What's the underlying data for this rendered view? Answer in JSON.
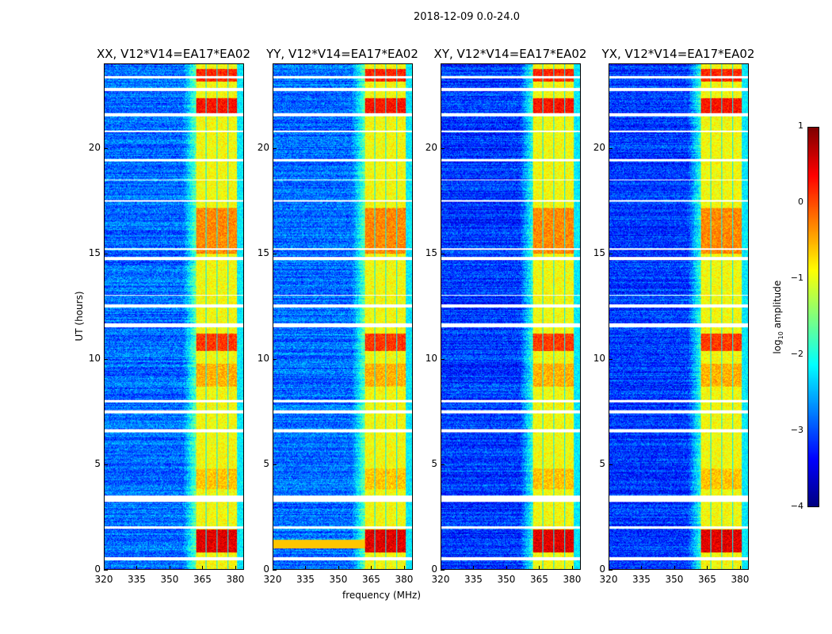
{
  "chart_data": {
    "type": "heatmap",
    "title": "2018-12-09 0.0-24.0",
    "xlabel": "frequency (MHz)",
    "ylabel": "UT (hours)",
    "xlim": [
      320,
      384
    ],
    "ylim": [
      0,
      24
    ],
    "xticks": [
      "320",
      "335",
      "350",
      "365",
      "380"
    ],
    "xtick_values": [
      320,
      335,
      350,
      365,
      380
    ],
    "yticks": [
      "0",
      "5",
      "10",
      "15",
      "20"
    ],
    "ytick_values": [
      0,
      5,
      10,
      15,
      20
    ],
    "panels": [
      {
        "title": "XX, V12*V14=EA17*EA02"
      },
      {
        "title": "YY, V12*V14=EA17*EA02"
      },
      {
        "title": "XY, V12*V14=EA17*EA02"
      },
      {
        "title": "YX, V12*V14=EA17*EA02"
      }
    ],
    "colorbar": {
      "label_prefix": "log",
      "label_sub": "10",
      "label_suffix": " amplitude",
      "range": [
        -4,
        1
      ],
      "ticks": [
        "1",
        "0",
        "−1",
        "−2",
        "−3",
        "−4"
      ],
      "tick_values": [
        1,
        0,
        -1,
        -2,
        -3,
        -4
      ],
      "colormap": "jet"
    },
    "background_level": -3.0,
    "band_mhz": [
      362,
      381
    ],
    "subbands_mhz": [
      [
        362,
        366.5
      ],
      [
        367,
        371.5
      ],
      [
        372,
        376.5
      ],
      [
        377,
        381
      ]
    ],
    "band_level": -0.9,
    "bright_hours": [
      [
        0.8,
        1.9,
        0.5
      ],
      [
        10.4,
        11.2,
        0.1
      ],
      [
        15.0,
        17.2,
        -0.3
      ],
      [
        21.7,
        22.4,
        0.3
      ],
      [
        23.2,
        23.8,
        0.2
      ],
      [
        3.8,
        4.8,
        -0.6
      ],
      [
        8.7,
        9.8,
        -0.5
      ]
    ],
    "flagged_hours": [
      [
        0.45,
        0.6
      ],
      [
        1.95,
        2.05
      ],
      [
        3.2,
        3.5
      ],
      [
        6.5,
        6.65
      ],
      [
        7.4,
        7.55
      ],
      [
        7.95,
        8.05
      ],
      [
        11.5,
        11.7
      ],
      [
        12.45,
        12.6
      ],
      [
        13.0,
        13.05
      ],
      [
        14.7,
        14.85
      ],
      [
        15.2,
        15.25
      ],
      [
        17.5,
        17.55
      ],
      [
        18.5,
        18.55
      ],
      [
        19.4,
        19.5
      ],
      [
        20.8,
        20.85
      ],
      [
        21.55,
        21.7
      ],
      [
        22.75,
        22.9
      ],
      [
        23.35,
        23.45
      ]
    ]
  }
}
